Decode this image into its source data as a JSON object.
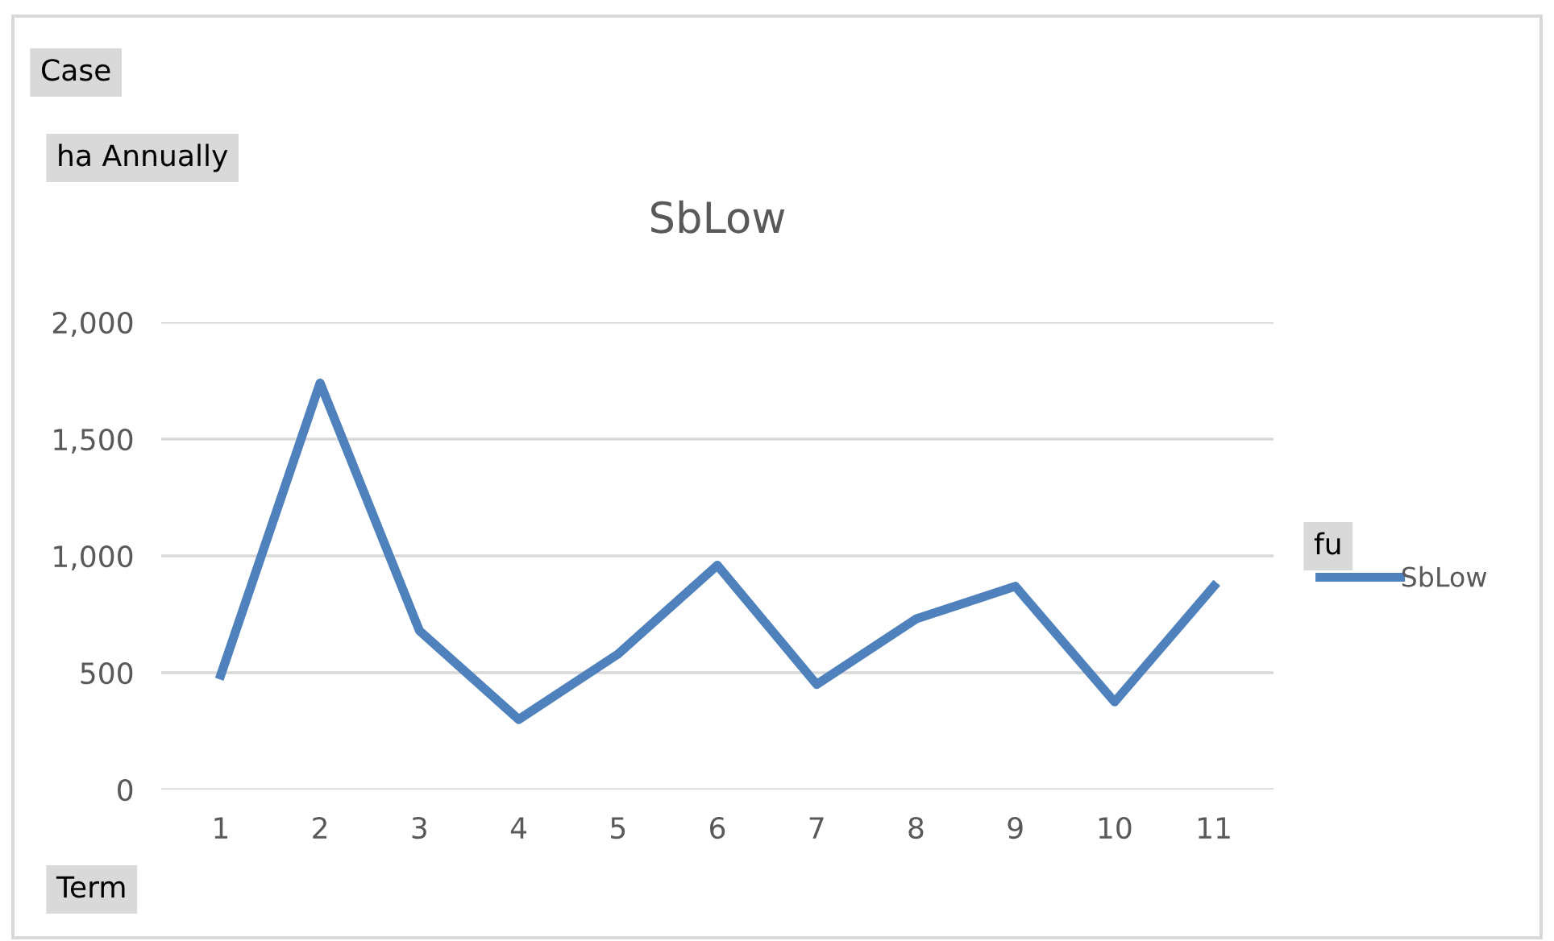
{
  "chart_data": {
    "type": "line",
    "title": "SbLow",
    "categories": [
      "1",
      "2",
      "3",
      "4",
      "5",
      "6",
      "7",
      "8",
      "9",
      "10",
      "11"
    ],
    "series": [
      {
        "name": "SbLow",
        "color": "#4f81bd",
        "values": [
          490,
          1740,
          680,
          300,
          580,
          960,
          450,
          730,
          870,
          375,
          870
        ]
      }
    ],
    "ylim": [
      0,
      2000
    ],
    "yticks": [
      0,
      {
        "value": 500,
        "label": "500"
      },
      {
        "value": 1000,
        "label": "1,000"
      },
      {
        "value": 1500,
        "label": "1,500"
      },
      {
        "value": 2000,
        "label": "2,000"
      }
    ],
    "grid": "y",
    "legend": "right",
    "marker": "none",
    "line_style": "solid",
    "annotations": [
      "Case",
      "ha Annually",
      "fu",
      "Term"
    ]
  }
}
